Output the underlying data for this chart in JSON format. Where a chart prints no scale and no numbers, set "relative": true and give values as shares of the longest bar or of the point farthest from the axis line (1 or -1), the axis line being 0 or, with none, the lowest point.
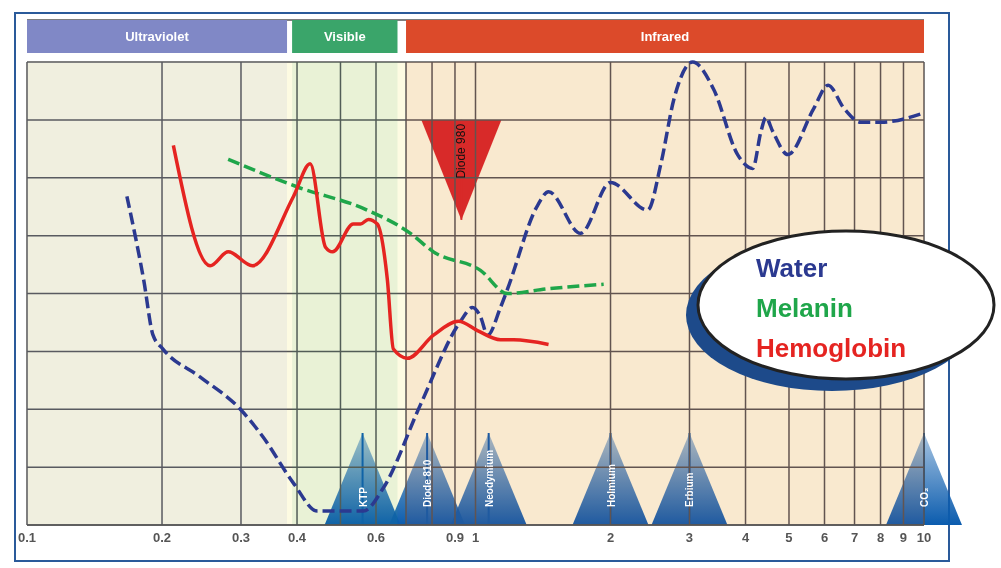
{
  "chart_data": {
    "type": "line",
    "relative": true,
    "log": "x",
    "xlim": [
      0.1,
      10
    ],
    "xticks": [
      0.1,
      0.2,
      0.3,
      0.4,
      {
        "value": 0.5,
        "label": null
      },
      0.6,
      {
        "value": 0.7,
        "label": null
      },
      {
        "value": 0.8,
        "label": null
      },
      0.9,
      1,
      2,
      3,
      4,
      5,
      6,
      7,
      8,
      9,
      10
    ],
    "grid": true,
    "legend": "right",
    "marker": "none",
    "series": [
      {
        "name": "Water",
        "color": "#2b3990",
        "line_style": "dashed",
        "x": [
          0.167,
          0.182,
          0.191,
          0.201,
          0.243,
          0.299,
          0.336,
          0.393,
          0.444,
          0.562,
          0.623,
          0.754,
          0.926,
          0.985,
          1.026,
          1.064,
          1.137,
          1.179,
          1.375,
          1.455,
          1.715,
          2.0,
          2.42,
          2.59,
          2.77,
          3.05,
          3.4,
          3.84,
          4.15,
          4.33,
          4.44,
          4.6,
          4.97,
          5.68,
          6.11,
          6.63,
          7.23,
          8.02,
          10.0
        ],
        "values": [
          0.71,
          0.53,
          0.41,
          0.38,
          0.32,
          0.25,
          0.19,
          0.09,
          0.03,
          0.03,
          0.08,
          0.26,
          0.44,
          0.47,
          0.45,
          0.41,
          0.47,
          0.51,
          0.69,
          0.72,
          0.63,
          0.74,
          0.68,
          0.78,
          0.92,
          1.0,
          0.94,
          0.8,
          0.77,
          0.85,
          0.88,
          0.85,
          0.8,
          0.9,
          0.95,
          0.9,
          0.87,
          0.87,
          0.89
        ]
      },
      {
        "name": "Melanin",
        "color": "#1fa64a",
        "line_style": "dashed",
        "x": [
          0.281,
          0.401,
          0.574,
          0.716,
          0.806,
          1.026,
          1.179,
          1.448,
          1.931
        ],
        "values": [
          0.79,
          0.73,
          0.68,
          0.63,
          0.59,
          0.55,
          0.5,
          0.51,
          0.52
        ]
      },
      {
        "name": "Hemoglobin",
        "color": "#e52421",
        "line_style": "solid",
        "x": [
          0.212,
          0.256,
          0.281,
          0.318,
          0.393,
          0.428,
          0.463,
          0.48,
          0.534,
          0.554,
          0.577,
          0.604,
          0.636,
          0.656,
          0.705,
          0.806,
          0.917,
          1.01,
          1.137,
          1.216,
          1.455
        ],
        "values": [
          0.82,
          0.56,
          0.59,
          0.56,
          0.71,
          0.78,
          0.6,
          0.59,
          0.65,
          0.65,
          0.66,
          0.65,
          0.53,
          0.38,
          0.36,
          0.41,
          0.44,
          0.42,
          0.4,
          0.4,
          0.39
        ]
      }
    ],
    "bands": [
      {
        "axis": "x",
        "from": 0.1,
        "to": 0.38,
        "label": "Ultraviolet",
        "color": "#8088c6"
      },
      {
        "axis": "x",
        "from": 0.39,
        "to": 0.67,
        "label": "Visible",
        "color": "#3aa56a"
      },
      {
        "axis": "x",
        "from": 0.7,
        "to": 10,
        "label": "Infrared",
        "color": "#dc4a2a"
      }
    ],
    "ref_lines": [
      {
        "axis": "x",
        "value": 0.56,
        "label": "KTP",
        "color": "#0b5cae"
      },
      {
        "axis": "x",
        "value": 0.78,
        "label": "Diode 810",
        "color": "#0b5cae"
      },
      {
        "axis": "x",
        "value": 1.07,
        "label": "Neodymium",
        "color": "#0b5cae"
      },
      {
        "axis": "x",
        "value": 2.0,
        "label": "Holmium",
        "color": "#0b5cae"
      },
      {
        "axis": "x",
        "value": 3.0,
        "label": "Erbium",
        "color": "#0b5cae"
      },
      {
        "axis": "x",
        "value": 10,
        "label": "CO₂",
        "color": "#0b5cae"
      },
      {
        "axis": "x",
        "value": 0.93,
        "label": "Diode 980",
        "color": "#d9262a"
      }
    ]
  }
}
